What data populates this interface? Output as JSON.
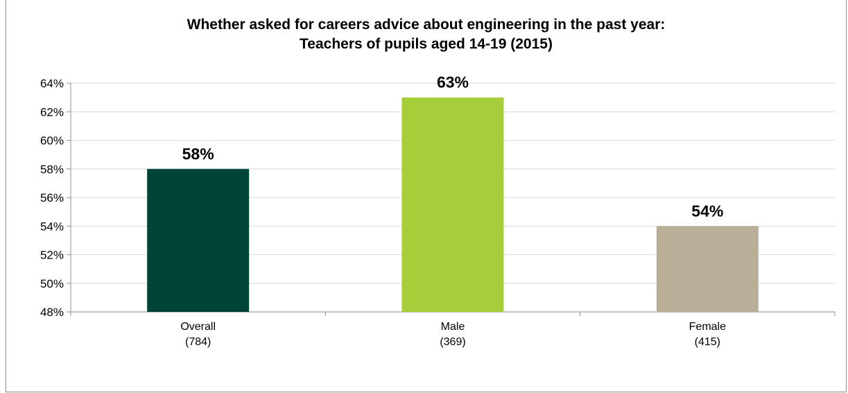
{
  "chart_data": {
    "type": "bar",
    "title_line1": "Whether asked for careers advice about engineering in the past year:",
    "title_line2": "Teachers of pupils aged 14-19 (2015)",
    "categories": [
      "Overall",
      "Male",
      "Female"
    ],
    "category_counts": [
      "(784)",
      "(369)",
      "(415)"
    ],
    "values": [
      58,
      63,
      54
    ],
    "data_labels": [
      "58%",
      "63%",
      "54%"
    ],
    "colors": [
      "#004438",
      "#a6ce39",
      "#b8af96"
    ],
    "ylim": [
      48,
      64
    ],
    "yticks": [
      48,
      50,
      52,
      54,
      56,
      58,
      60,
      62,
      64
    ],
    "ytick_labels": [
      "48%",
      "50%",
      "52%",
      "54%",
      "56%",
      "58%",
      "60%",
      "62%",
      "64%"
    ],
    "grid": true,
    "legend": "none"
  }
}
